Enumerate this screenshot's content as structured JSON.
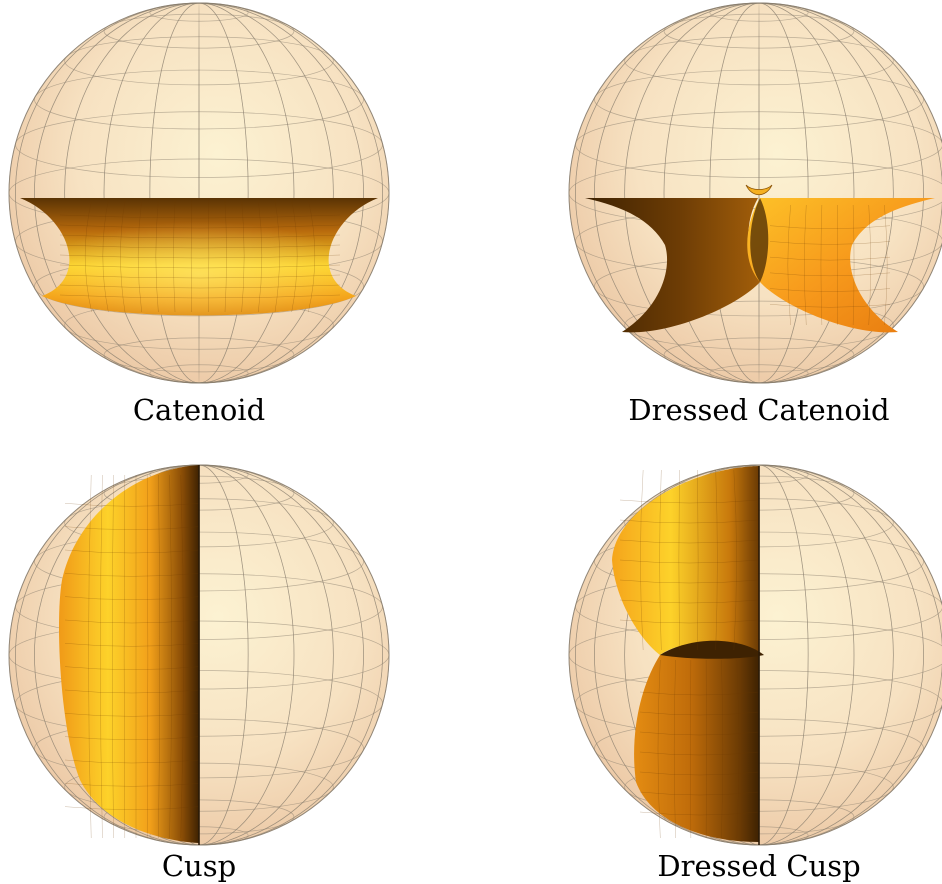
{
  "panels": [
    {
      "id": "catenoid",
      "caption": "Catenoid"
    },
    {
      "id": "dressed-catenoid",
      "caption": "Dressed Catenoid"
    },
    {
      "id": "cusp",
      "caption": "Cusp"
    },
    {
      "id": "dressed-cusp",
      "caption": "Dressed Cusp"
    }
  ],
  "colors": {
    "sphere_fill": "#f7e2c4",
    "sphere_highlight": "#fbf0d0",
    "grid_line": "#8a8070",
    "surface_bright": "#fdd32a",
    "surface_mid": "#f2a318",
    "surface_dark": "#5a3304"
  }
}
